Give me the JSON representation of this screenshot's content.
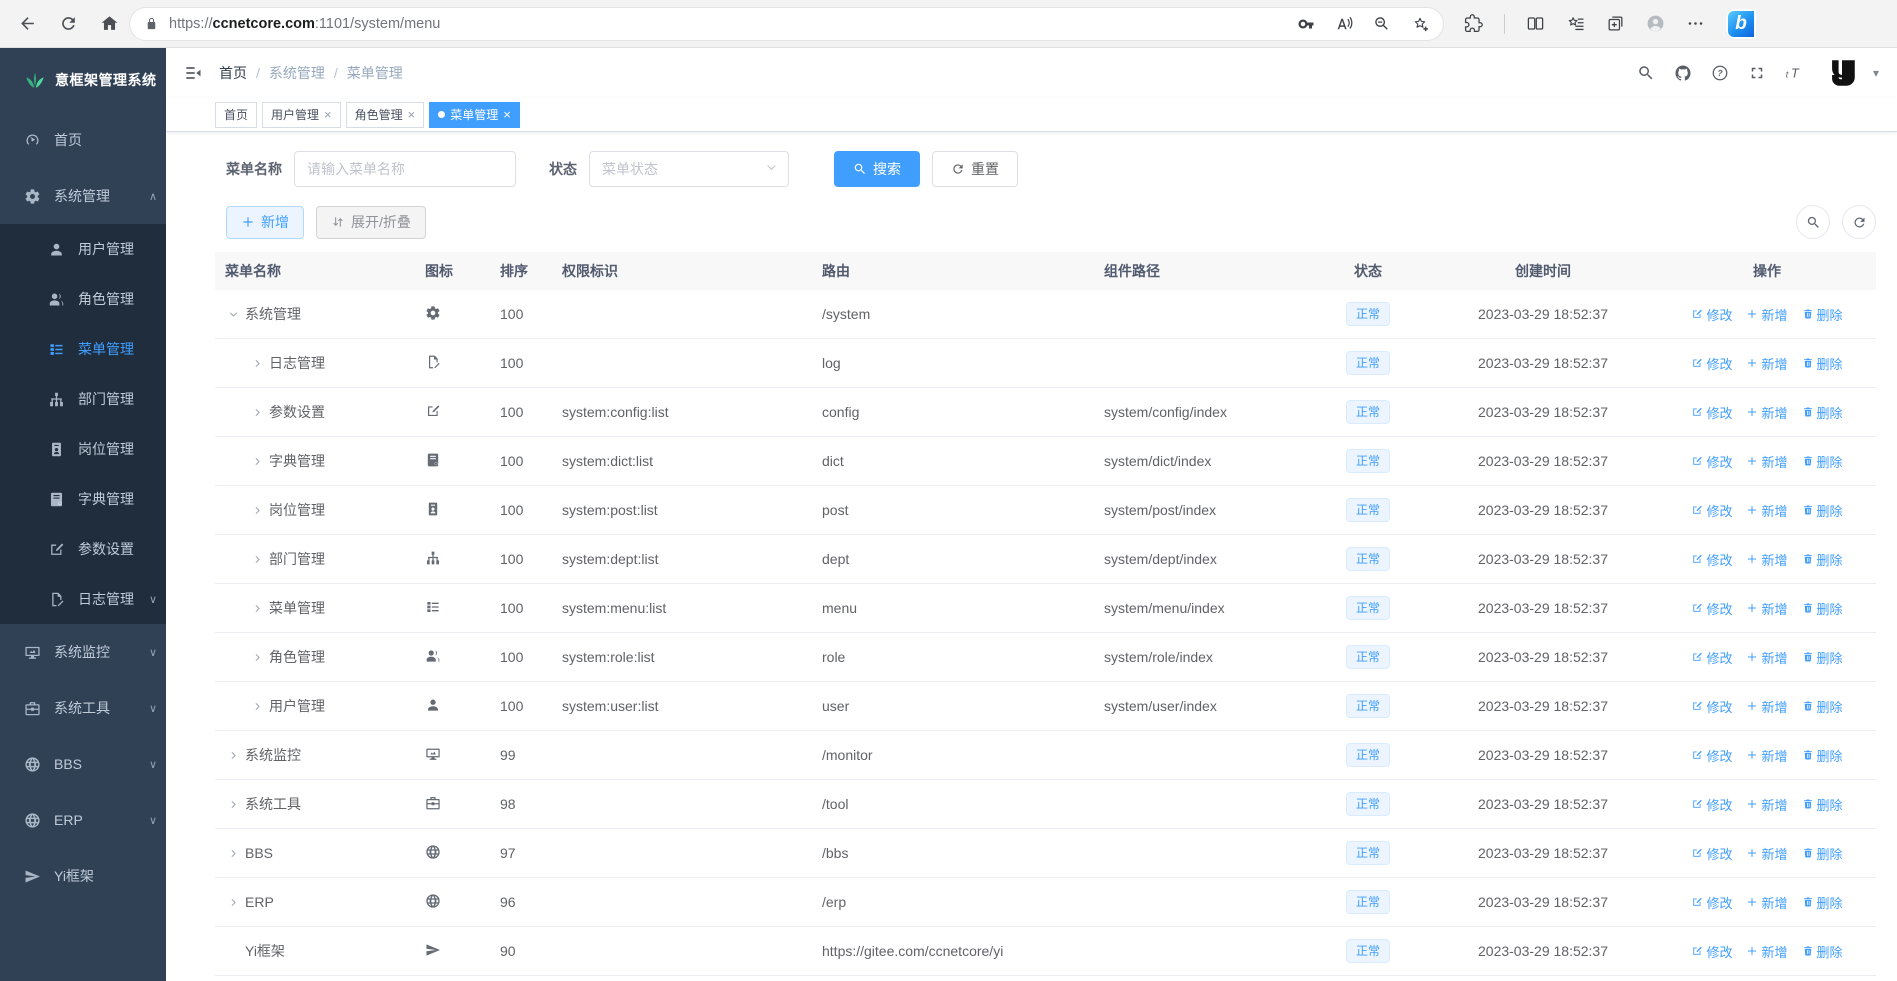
{
  "browser": {
    "url_scheme": "https://",
    "url_host": "ccnetcore.com",
    "url_path": ":1101/system/menu",
    "chrome_icons": [
      "back-icon",
      "refresh-icon",
      "home-icon",
      "lock-icon",
      "key-icon",
      "read-aloud-icon",
      "zoom-out-icon",
      "add-favorite-icon",
      "extensions-icon",
      "split-screen-icon",
      "favorites-icon",
      "collections-icon",
      "profile-avatar-icon",
      "more-icon",
      "bing-copilot-icon"
    ],
    "copilot_glyph": "b"
  },
  "sidebar": {
    "title": "意框架管理系统",
    "logo_icon": "leaf-logo-icon",
    "items": [
      {
        "label": "首页",
        "icon": "dashboard-icon",
        "level": 0,
        "chevron": "",
        "active": false
      },
      {
        "label": "系统管理",
        "icon": "gear-icon",
        "level": 0,
        "chevron": "up",
        "active": false
      },
      {
        "label": "用户管理",
        "icon": "user-icon",
        "level": 1,
        "chevron": "",
        "active": false
      },
      {
        "label": "角色管理",
        "icon": "users-icon",
        "level": 1,
        "chevron": "",
        "active": false
      },
      {
        "label": "菜单管理",
        "icon": "menu-list-icon",
        "level": 1,
        "chevron": "",
        "active": true
      },
      {
        "label": "部门管理",
        "icon": "org-tree-icon",
        "level": 1,
        "chevron": "",
        "active": false
      },
      {
        "label": "岗位管理",
        "icon": "id-badge-icon",
        "level": 1,
        "chevron": "",
        "active": false
      },
      {
        "label": "字典管理",
        "icon": "dictionary-icon",
        "level": 1,
        "chevron": "",
        "active": false
      },
      {
        "label": "参数设置",
        "icon": "edit-square-icon",
        "level": 1,
        "chevron": "",
        "active": false
      },
      {
        "label": "日志管理",
        "icon": "log-doc-icon",
        "level": 1,
        "chevron": "down",
        "active": false
      },
      {
        "label": "系统监控",
        "icon": "monitor-icon",
        "level": 0,
        "chevron": "down",
        "active": false
      },
      {
        "label": "系统工具",
        "icon": "toolbox-icon",
        "level": 0,
        "chevron": "down",
        "active": false
      },
      {
        "label": "BBS",
        "icon": "globe-icon",
        "level": 0,
        "chevron": "down",
        "active": false
      },
      {
        "label": "ERP",
        "icon": "globe-icon",
        "level": 0,
        "chevron": "down",
        "active": false
      },
      {
        "label": "Yi框架",
        "icon": "paper-plane-icon",
        "level": 0,
        "chevron": "",
        "active": false
      }
    ]
  },
  "navbar": {
    "breadcrumb": [
      "首页",
      "系统管理",
      "菜单管理"
    ],
    "breadcrumb_separator": "/",
    "right_icons": [
      "search-icon",
      "github-icon",
      "help-icon",
      "fullscreen-icon",
      "font-size-icon",
      "avatar-logo",
      "dropdown-caret-icon"
    ]
  },
  "tags": [
    {
      "label": "首页",
      "closable": false,
      "active": false
    },
    {
      "label": "用户管理",
      "closable": true,
      "active": false
    },
    {
      "label": "角色管理",
      "closable": true,
      "active": false
    },
    {
      "label": "菜单管理",
      "closable": true,
      "active": true
    }
  ],
  "filters": {
    "name_label": "菜单名称",
    "name_placeholder": "请输入菜单名称",
    "status_label": "状态",
    "status_placeholder": "菜单状态",
    "search_label": "搜索",
    "reset_label": "重置"
  },
  "toolbar": {
    "add_label": "新增",
    "expand_label": "展开/折叠"
  },
  "table": {
    "columns": [
      "菜单名称",
      "图标",
      "排序",
      "权限标识",
      "路由",
      "组件路径",
      "状态",
      "创建时间",
      "操作"
    ],
    "ops": {
      "edit": "修改",
      "add": "新增",
      "delete": "删除"
    },
    "rows": [
      {
        "name": "系统管理",
        "icon": "gear-icon",
        "level": 0,
        "expand": "down",
        "sort": "100",
        "perm": "",
        "route": "/system",
        "component": "",
        "status": "正常",
        "time": "2023-03-29 18:52:37"
      },
      {
        "name": "日志管理",
        "icon": "log-doc-icon",
        "level": 1,
        "expand": "right",
        "sort": "100",
        "perm": "",
        "route": "log",
        "component": "",
        "status": "正常",
        "time": "2023-03-29 18:52:37"
      },
      {
        "name": "参数设置",
        "icon": "edit-square-icon",
        "level": 1,
        "expand": "right",
        "sort": "100",
        "perm": "system:config:list",
        "route": "config",
        "component": "system/config/index",
        "status": "正常",
        "time": "2023-03-29 18:52:37"
      },
      {
        "name": "字典管理",
        "icon": "dictionary-icon",
        "level": 1,
        "expand": "right",
        "sort": "100",
        "perm": "system:dict:list",
        "route": "dict",
        "component": "system/dict/index",
        "status": "正常",
        "time": "2023-03-29 18:52:37"
      },
      {
        "name": "岗位管理",
        "icon": "id-badge-icon",
        "level": 1,
        "expand": "right",
        "sort": "100",
        "perm": "system:post:list",
        "route": "post",
        "component": "system/post/index",
        "status": "正常",
        "time": "2023-03-29 18:52:37"
      },
      {
        "name": "部门管理",
        "icon": "org-tree-icon",
        "level": 1,
        "expand": "right",
        "sort": "100",
        "perm": "system:dept:list",
        "route": "dept",
        "component": "system/dept/index",
        "status": "正常",
        "time": "2023-03-29 18:52:37"
      },
      {
        "name": "菜单管理",
        "icon": "menu-list-icon",
        "level": 1,
        "expand": "right",
        "sort": "100",
        "perm": "system:menu:list",
        "route": "menu",
        "component": "system/menu/index",
        "status": "正常",
        "time": "2023-03-29 18:52:37"
      },
      {
        "name": "角色管理",
        "icon": "users-icon",
        "level": 1,
        "expand": "right",
        "sort": "100",
        "perm": "system:role:list",
        "route": "role",
        "component": "system/role/index",
        "status": "正常",
        "time": "2023-03-29 18:52:37"
      },
      {
        "name": "用户管理",
        "icon": "user-icon",
        "level": 1,
        "expand": "right",
        "sort": "100",
        "perm": "system:user:list",
        "route": "user",
        "component": "system/user/index",
        "status": "正常",
        "time": "2023-03-29 18:52:37"
      },
      {
        "name": "系统监控",
        "icon": "monitor-icon",
        "level": 0,
        "expand": "right",
        "sort": "99",
        "perm": "",
        "route": "/monitor",
        "component": "",
        "status": "正常",
        "time": "2023-03-29 18:52:37"
      },
      {
        "name": "系统工具",
        "icon": "toolbox-icon",
        "level": 0,
        "expand": "right",
        "sort": "98",
        "perm": "",
        "route": "/tool",
        "component": "",
        "status": "正常",
        "time": "2023-03-29 18:52:37"
      },
      {
        "name": "BBS",
        "icon": "globe-icon",
        "level": 0,
        "expand": "right",
        "sort": "97",
        "perm": "",
        "route": "/bbs",
        "component": "",
        "status": "正常",
        "time": "2023-03-29 18:52:37"
      },
      {
        "name": "ERP",
        "icon": "globe-icon",
        "level": 0,
        "expand": "right",
        "sort": "96",
        "perm": "",
        "route": "/erp",
        "component": "",
        "status": "正常",
        "time": "2023-03-29 18:52:37"
      },
      {
        "name": "Yi框架",
        "icon": "paper-plane-icon",
        "level": 0,
        "expand": "none",
        "sort": "90",
        "perm": "",
        "route": "https://gitee.com/ccnetcore/yi",
        "component": "",
        "status": "正常",
        "time": "2023-03-29 18:52:37"
      }
    ]
  },
  "colors": {
    "accent": "#409eff",
    "sidebar_bg": "#304156",
    "sidebar_submenu_bg": "#1f2d3d",
    "active_tab_bg": "#409eff",
    "tag_badge_bg": "#ecf5ff",
    "tag_badge_text": "#409eff",
    "logo_green": "#36b37e"
  }
}
